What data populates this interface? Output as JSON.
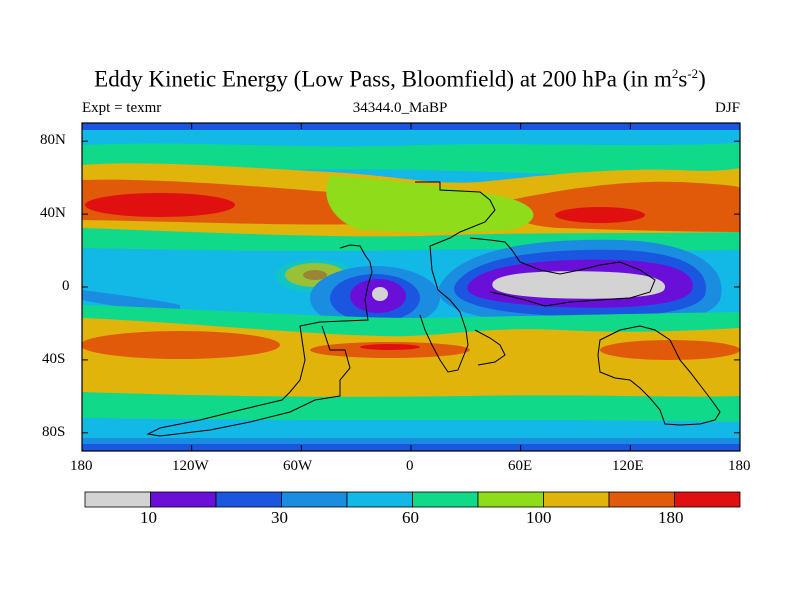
{
  "chart_data": {
    "type": "heatmap",
    "title": {
      "main": "Eddy Kinetic Energy (Low Pass, Bloomfield) at 200 hPa (in m",
      "sup1": "2",
      "mid": "s",
      "sup2": "-2",
      "end": ")"
    },
    "subtitle_left": "Expt = texmr",
    "subtitle_center": "34344.0_MaBP",
    "subtitle_right": "DJF",
    "x_ticks": [
      "180",
      "120W",
      "60W",
      "0",
      "60E",
      "120E",
      "180"
    ],
    "y_ticks": [
      "80N",
      "40N",
      "0",
      "40S",
      "80S"
    ],
    "colorbar_labels": [
      "10",
      "30",
      "60",
      "100",
      "180"
    ],
    "levels": [
      "0-10",
      "10-20",
      "20-30",
      "30-45",
      "45-60",
      "60-80",
      "80-100",
      "100-140",
      "140-180",
      ">180"
    ],
    "colors": [
      "#d3d3d3",
      "#6a0fd8",
      "#1a56e0",
      "#1a8de0",
      "#12b8e6",
      "#11d98a",
      "#8fdc1a",
      "#e0b40a",
      "#e05a0a",
      "#e01010"
    ],
    "xlim": [
      -180,
      180
    ],
    "ylim": [
      -90,
      90
    ],
    "grid": false
  }
}
